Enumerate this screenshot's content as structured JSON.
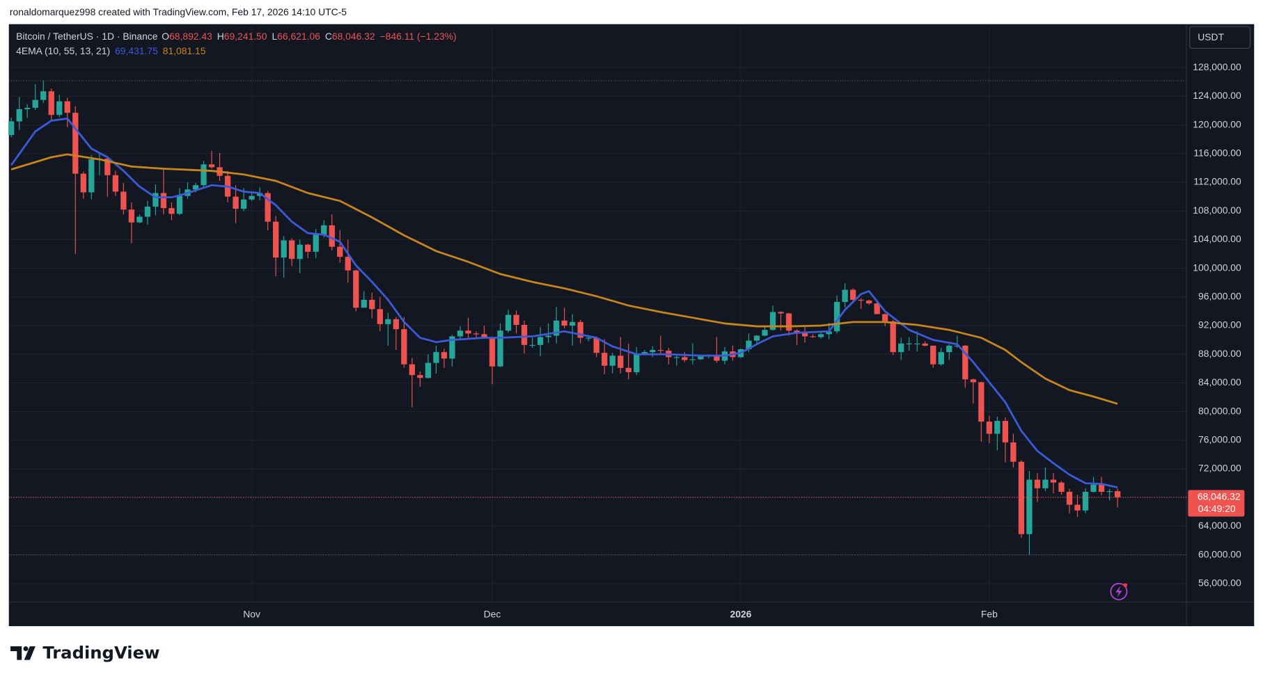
{
  "attribution": "ronaldomarquez998 created with TradingView.com, Feb 17, 2026 14:10 UTC-5",
  "brand": "TradingView",
  "chart_data": {
    "type": "candlestick",
    "title": "Bitcoin / TetherUS · 1D · Binance",
    "legend_ohlc": [
      {
        "label": "O",
        "value": "68,892.43"
      },
      {
        "label": "H",
        "value": "69,241.50"
      },
      {
        "label": "L",
        "value": "66,621.06"
      },
      {
        "label": "C",
        "value": "68,046.32"
      }
    ],
    "change": "−846.11 (−1.23%)",
    "indicator": {
      "name": "4EMA (10, 55, 13, 21)",
      "legend_values": [
        "69,431.75",
        "81,081.15"
      ]
    },
    "currency": "USDT",
    "last_price_label": "68,046.32",
    "countdown": "04:49:20",
    "up_color": "#26a69a",
    "down_color": "#ef5350",
    "grid": true,
    "open": [
      118600,
      120500,
      122200,
      122400,
      123500,
      124700,
      121400,
      123300,
      121700,
      113200,
      110600,
      115200,
      115300,
      113000,
      110700,
      108200,
      106400,
      107200,
      108600,
      110500,
      108400,
      107600,
      110100,
      111000,
      111600,
      114500,
      114100,
      112900,
      110000,
      108300,
      109600,
      110100,
      110500,
      106500,
      101500,
      103900,
      101300,
      103300,
      102300,
      104700,
      106000,
      103000,
      101600,
      99700,
      94500,
      95600,
      94300,
      92200,
      92900,
      91500,
      86600,
      85100,
      84700,
      86800,
      88300,
      87400,
      90500,
      91300,
      90900,
      90800,
      90400,
      86300,
      91300,
      93500,
      92100,
      89300,
      89300,
      90400,
      90600,
      92700,
      92000,
      92500,
      90300,
      90300,
      88200,
      86400,
      87800,
      86100,
      85500,
      88100,
      88300,
      88600,
      88500,
      87600,
      87600,
      87200,
      87300,
      87800,
      87800,
      87100,
      88400,
      87600,
      88700,
      89900,
      90600,
      91400,
      93900,
      93700,
      91300,
      91000,
      90500,
      90400,
      90800,
      91200,
      95300,
      97000,
      95600,
      95500,
      95100,
      93600,
      92600,
      88300,
      89500,
      89500,
      89500,
      89200,
      86600,
      88300,
      89200,
      89200,
      84500,
      84100,
      78600,
      76900,
      78700,
      75700,
      73000,
      62900,
      70500,
      69300,
      70500,
      70100,
      68800,
      67000,
      66200,
      68800,
      69800,
      68800,
      68892.43
    ],
    "high": [
      121000,
      123900,
      122900,
      125700,
      126200,
      125100,
      124200,
      123800,
      122600,
      113500,
      115800,
      116000,
      115400,
      113600,
      111900,
      109200,
      107500,
      109400,
      111700,
      114000,
      109200,
      111200,
      112000,
      111900,
      115000,
      116400,
      116100,
      113600,
      111600,
      111200,
      110600,
      111300,
      110800,
      107300,
      104500,
      104200,
      104000,
      103400,
      105500,
      106700,
      107500,
      105300,
      104000,
      99800,
      96800,
      96600,
      96000,
      93800,
      93200,
      93200,
      87500,
      85600,
      88000,
      89200,
      88800,
      90700,
      91900,
      93100,
      91200,
      92000,
      90400,
      92300,
      94200,
      94100,
      92700,
      90300,
      91800,
      92300,
      94600,
      94500,
      93600,
      92800,
      90700,
      90500,
      90100,
      88200,
      90400,
      89500,
      89000,
      88600,
      89100,
      90600,
      88900,
      88000,
      88300,
      89500,
      88000,
      88000,
      90400,
      89000,
      89200,
      88800,
      90900,
      90700,
      91800,
      94800,
      94000,
      93800,
      91500,
      91800,
      90800,
      91100,
      92400,
      96200,
      97900,
      97200,
      95800,
      95600,
      95500,
      93700,
      92800,
      90300,
      90400,
      91200,
      89800,
      89200,
      88900,
      89400,
      90600,
      89300,
      84600,
      84200,
      79400,
      79300,
      79200,
      76900,
      73200,
      71700,
      71400,
      72200,
      71400,
      70300,
      69200,
      68400,
      69300,
      70900,
      70900,
      69200,
      69241.5
    ],
    "low": [
      118300,
      119300,
      121000,
      122100,
      123100,
      120600,
      121100,
      119700,
      102000,
      109700,
      109600,
      113000,
      110000,
      110100,
      107500,
      103500,
      106300,
      106100,
      107400,
      107500,
      106700,
      107400,
      109700,
      110600,
      111300,
      113900,
      112200,
      109200,
      106300,
      108000,
      109400,
      109500,
      105300,
      98900,
      98700,
      100300,
      99300,
      101400,
      101400,
      104300,
      102500,
      100800,
      98000,
      94000,
      94500,
      93000,
      91200,
      89200,
      88600,
      86100,
      80600,
      83500,
      84600,
      85300,
      86100,
      86300,
      90000,
      90200,
      90200,
      90300,
      83800,
      86200,
      91000,
      90900,
      88100,
      88900,
      87700,
      89600,
      89500,
      91600,
      89200,
      89500,
      89800,
      87600,
      85200,
      85300,
      85300,
      84500,
      85100,
      87900,
      87600,
      87900,
      86600,
      86400,
      86900,
      86600,
      87200,
      87400,
      86800,
      86600,
      87100,
      87500,
      88300,
      89300,
      90500,
      91300,
      91300,
      90600,
      89300,
      89600,
      90300,
      90200,
      90100,
      90900,
      94500,
      95100,
      94300,
      94900,
      93600,
      91900,
      87900,
      87200,
      88500,
      88400,
      89100,
      86100,
      86400,
      87200,
      88900,
      83300,
      81100,
      75800,
      75600,
      74600,
      72900,
      72200,
      62400,
      60000,
      67400,
      68900,
      68600,
      68400,
      65800,
      65300,
      65800,
      68700,
      68300,
      67600,
      66621.06
    ],
    "close": [
      120500,
      122200,
      122400,
      123500,
      124700,
      121400,
      123300,
      121700,
      113200,
      110600,
      115200,
      115300,
      113000,
      110700,
      108200,
      106400,
      107200,
      108600,
      110500,
      108400,
      107600,
      110100,
      111000,
      111600,
      114500,
      114100,
      112900,
      110000,
      108300,
      109600,
      110100,
      110500,
      106500,
      101500,
      103900,
      101300,
      103300,
      102300,
      104700,
      106000,
      103000,
      101600,
      99700,
      94500,
      95600,
      94300,
      92200,
      92900,
      91500,
      86600,
      85100,
      84700,
      86800,
      88300,
      87400,
      90500,
      91300,
      90900,
      90800,
      90400,
      86300,
      91300,
      93500,
      92100,
      89300,
      89300,
      90400,
      90600,
      92700,
      92000,
      92500,
      90300,
      90300,
      88200,
      86400,
      87800,
      86100,
      85500,
      88100,
      88300,
      88600,
      88500,
      87600,
      87600,
      87200,
      87300,
      87800,
      87800,
      87100,
      88400,
      87600,
      88700,
      89900,
      90600,
      91400,
      93900,
      93700,
      91300,
      91000,
      90500,
      90400,
      90800,
      91200,
      95300,
      97000,
      95600,
      95500,
      95100,
      93600,
      92600,
      88300,
      89500,
      89500,
      89500,
      89200,
      86600,
      88300,
      89200,
      89200,
      84500,
      84100,
      78600,
      76900,
      78700,
      75700,
      73000,
      62900,
      70500,
      69300,
      70500,
      70100,
      68800,
      67000,
      66200,
      68800,
      69800,
      68800,
      68892.43,
      68046.32
    ],
    "lines": [
      {
        "color": "#3b5bdb",
        "x": [
          0,
          3,
          5,
          7,
          8,
          10,
          12,
          14,
          16,
          18,
          20,
          22,
          25,
          27,
          29,
          31,
          33,
          35,
          37,
          39,
          41,
          43,
          45,
          47,
          49,
          51,
          53,
          55,
          59,
          61,
          65,
          69,
          73,
          75,
          78,
          82,
          86,
          89,
          91,
          93,
          95,
          98,
          102,
          104,
          106,
          107,
          109,
          112,
          115,
          118,
          120,
          122,
          124,
          126,
          128,
          130,
          132,
          134,
          136,
          138
        ],
        "values": [
          114400,
          119100,
          120600,
          120900,
          119500,
          116700,
          115500,
          113600,
          111400,
          109900,
          109900,
          110500,
          111600,
          111400,
          110700,
          110500,
          108800,
          106500,
          104900,
          104700,
          103700,
          100400,
          98100,
          95600,
          92500,
          90300,
          89700,
          90000,
          90300,
          90300,
          90500,
          91200,
          90300,
          89100,
          88000,
          88000,
          87800,
          87800,
          88200,
          89400,
          90500,
          91000,
          91200,
          94200,
          96400,
          96800,
          94000,
          91400,
          90000,
          89400,
          86900,
          84100,
          81300,
          77300,
          74500,
          72800,
          71200,
          70000,
          69900,
          69431.75
        ]
      },
      {
        "color": "#c8861a",
        "x": [
          0,
          5,
          7,
          11,
          15,
          19,
          25,
          29,
          33,
          37,
          41,
          45,
          49,
          53,
          57,
          61,
          65,
          69,
          73,
          77,
          81,
          85,
          89,
          93,
          97,
          101,
          105,
          109,
          113,
          117,
          121,
          124,
          126,
          129,
          132,
          135,
          138
        ],
        "values": [
          113800,
          115500,
          115900,
          115200,
          114200,
          113900,
          113600,
          113100,
          112200,
          110500,
          109400,
          107100,
          104600,
          102400,
          100900,
          99200,
          98100,
          97200,
          96100,
          94800,
          93900,
          93100,
          92300,
          91900,
          91900,
          92000,
          92500,
          92500,
          92100,
          91400,
          90300,
          88600,
          86900,
          84600,
          83000,
          82100,
          81081.15
        ]
      }
    ],
    "xlim": [
      -0.3,
      146.6
    ],
    "xticks": [
      {
        "value": 30,
        "label": "Nov"
      },
      {
        "value": 60,
        "label": "Dec"
      },
      {
        "value": 91,
        "label": "2026"
      },
      {
        "value": 122,
        "label": "Feb"
      }
    ],
    "ylim": [
      53420,
      134070
    ],
    "yticks": [
      {
        "value": 56000,
        "label": "56,000.00"
      },
      {
        "value": 60000,
        "label": "60,000.00"
      },
      {
        "value": 64000,
        "label": "64,000.00"
      },
      {
        "value": 68000,
        "label": "68,000.00"
      },
      {
        "value": 72000,
        "label": "72,000.00"
      },
      {
        "value": 76000,
        "label": "76,000.00"
      },
      {
        "value": 80000,
        "label": "80,000.00"
      },
      {
        "value": 84000,
        "label": "84,000.00"
      },
      {
        "value": 88000,
        "label": "88,000.00"
      },
      {
        "value": 92000,
        "label": "92,000.00"
      },
      {
        "value": 96000,
        "label": "96,000.00"
      },
      {
        "value": 100000,
        "label": "100,000.00"
      },
      {
        "value": 104000,
        "label": "104,000.00"
      },
      {
        "value": 108000,
        "label": "108,000.00"
      },
      {
        "value": 112000,
        "label": "112,000.00"
      },
      {
        "value": 116000,
        "label": "116,000.00"
      },
      {
        "value": 120000,
        "label": "120,000.00"
      },
      {
        "value": 124000,
        "label": "124,000.00"
      },
      {
        "value": 128000,
        "label": "128,000.00"
      }
    ]
  }
}
